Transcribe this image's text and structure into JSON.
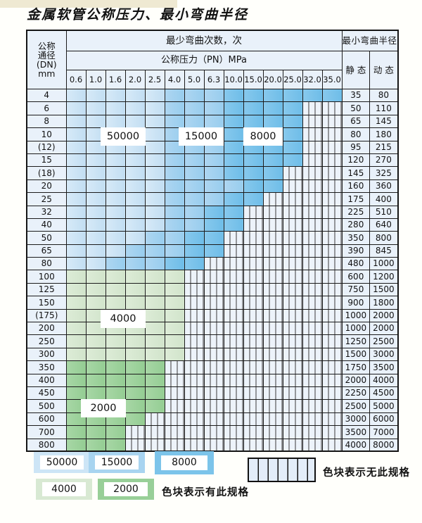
{
  "title": "金属软管公称压力、最小弯曲半径",
  "header": {
    "dn_lines": [
      "公称",
      "通径",
      "(DN)",
      "mm"
    ],
    "cycles_label": "最少弯曲次数，次",
    "pressure_label": "公称压力（PN）MPa",
    "radius_label": "最小弯曲半径",
    "static_label": "静 态",
    "dynamic_label": "动 态"
  },
  "annotations": {
    "a50000": "50000",
    "a15000": "15000",
    "a8000": "8000",
    "a4000": "4000",
    "a2000": "2000"
  },
  "legend": {
    "has_label": "色块表示有此规格",
    "none_label": "色块表示无此规格",
    "items": [
      {
        "value": "50000",
        "color": "#cde5f6"
      },
      {
        "value": "15000",
        "color": "#a8d4f0"
      },
      {
        "value": "8000",
        "color": "#7cc4ea"
      },
      {
        "value": "4000",
        "color": "#d8e9d3"
      },
      {
        "value": "2000",
        "color": "#98cf98"
      }
    ]
  },
  "colors": {
    "zone_50000": "#cde5f6",
    "zone_15000": "#a8d4f0",
    "zone_8000": "#7cc4ea",
    "zone_4000": "#d8e9d3",
    "zone_2000": "#98cf98",
    "hatch_bg": "#edf3fa",
    "header_bg": "#e9f1fa",
    "grid_line": "#1b1b1b"
  },
  "chart_data": {
    "type": "table",
    "title": "金属软管公称压力、最小弯曲半径",
    "x_axis_label": "公称压力（PN）MPa",
    "value_meaning": "最少弯曲次数，次",
    "pressures": [
      "0.6",
      "1.0",
      "1.6",
      "2.0",
      "2.5",
      "4.0",
      "5.0",
      "6.3",
      "10.0",
      "15.0",
      "20.0",
      "25.0",
      "32.0",
      "35.0"
    ],
    "zone_codes": {
      "L": "50000",
      "M": "15000",
      "D": "8000",
      "G": "4000",
      "H": "2000",
      "X": null
    },
    "rows": [
      {
        "dn": "4",
        "cells": "LLLLLMMMDDDDDD",
        "static": "35",
        "dynamic": "80"
      },
      {
        "dn": "6",
        "cells": "LLLLLMMMDDDDXX",
        "static": "50",
        "dynamic": "110"
      },
      {
        "dn": "8",
        "cells": "LLLLLMMMDDDDXX",
        "static": "65",
        "dynamic": "145"
      },
      {
        "dn": "10",
        "cells": "LLLLLMMMDDDDXX",
        "static": "80",
        "dynamic": "180"
      },
      {
        "dn": "(12)",
        "cells": "LLLLLMMMDDDDXX",
        "static": "95",
        "dynamic": "215"
      },
      {
        "dn": "15",
        "cells": "LLLLLMMMDDDDXX",
        "static": "120",
        "dynamic": "270"
      },
      {
        "dn": "(18)",
        "cells": "LLLLLMMMDDDXXX",
        "static": "145",
        "dynamic": "325"
      },
      {
        "dn": "20",
        "cells": "LLLLLMMMMDDXXX",
        "static": "160",
        "dynamic": "360"
      },
      {
        "dn": "25",
        "cells": "LLLLLMMMDDXXXX",
        "static": "175",
        "dynamic": "400"
      },
      {
        "dn": "32",
        "cells": "LLLLLMMDDXXXXX",
        "static": "225",
        "dynamic": "510"
      },
      {
        "dn": "40",
        "cells": "LLLLLMMDDXXXXX",
        "static": "280",
        "dynamic": "640"
      },
      {
        "dn": "50",
        "cells": "LLLLMMDDXXXXXX",
        "static": "350",
        "dynamic": "800"
      },
      {
        "dn": "65",
        "cells": "LLLMMMDDXXXXXX",
        "static": "390",
        "dynamic": "845"
      },
      {
        "dn": "80",
        "cells": "LLMMMDDXXXXXXX",
        "static": "480",
        "dynamic": "1000"
      },
      {
        "dn": "100",
        "cells": "GGGGGGXXXXXXXX",
        "static": "600",
        "dynamic": "1200"
      },
      {
        "dn": "125",
        "cells": "GGGGGGXXXXXXXX",
        "static": "750",
        "dynamic": "1500"
      },
      {
        "dn": "150",
        "cells": "GGGGGGXXXXXXXX",
        "static": "900",
        "dynamic": "1800"
      },
      {
        "dn": "(175)",
        "cells": "GGGGGGXXXXXXXX",
        "static": "1000",
        "dynamic": "2000"
      },
      {
        "dn": "200",
        "cells": "GGGGGGXXXXXXXX",
        "static": "1000",
        "dynamic": "2000"
      },
      {
        "dn": "250",
        "cells": "GGGGGGXXXXXXXX",
        "static": "1250",
        "dynamic": "2500"
      },
      {
        "dn": "300",
        "cells": "GGGGGGXXXXXXXX",
        "static": "1500",
        "dynamic": "3000"
      },
      {
        "dn": "350",
        "cells": "HHHHHXXXXXXXXX",
        "static": "1750",
        "dynamic": "3500"
      },
      {
        "dn": "400",
        "cells": "HHHHHXXXXXXXXX",
        "static": "2000",
        "dynamic": "4000"
      },
      {
        "dn": "450",
        "cells": "HHHHHXXXXXXXXX",
        "static": "2250",
        "dynamic": "4500"
      },
      {
        "dn": "500",
        "cells": "HHHHHXXXXXXXXX",
        "static": "2500",
        "dynamic": "5000"
      },
      {
        "dn": "600",
        "cells": "HHHHXXXXXXXXXX",
        "static": "3000",
        "dynamic": "6000"
      },
      {
        "dn": "700",
        "cells": "HHHXXXXXXXXXXX",
        "static": "3500",
        "dynamic": "7000"
      },
      {
        "dn": "800",
        "cells": "HHHXXXXXXXXXXX",
        "static": "4000",
        "dynamic": "8000"
      }
    ]
  }
}
